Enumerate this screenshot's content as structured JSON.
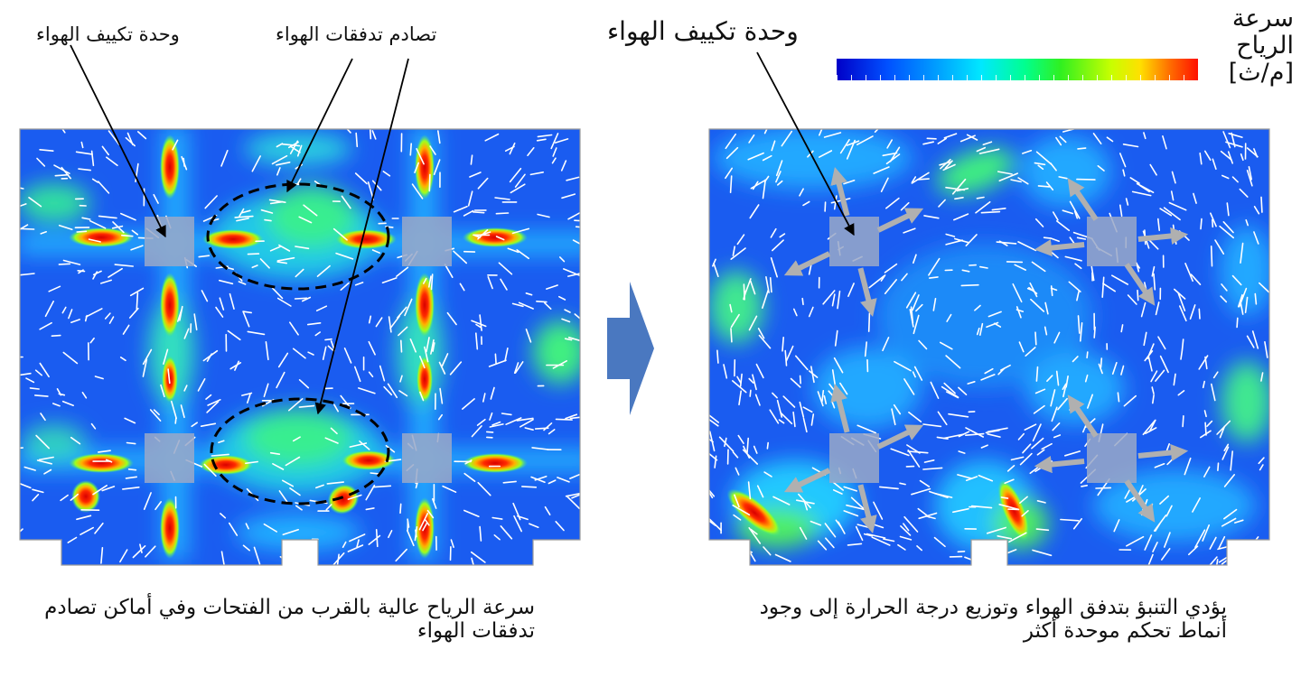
{
  "left_panel": {
    "label_ac_unit": "وحدة تكييف الهواء",
    "label_collision": "تصادم تدفقات الهواء",
    "caption_line1": "سرعة الرياح عالية بالقرب من الفتحات وفي أماكن تصادم",
    "caption_line2": "تدفقات الهواء"
  },
  "right_panel": {
    "label_ac_unit": "وحدة تكييف الهواء",
    "caption_line1": "يؤدي التنبؤ بتدفق الهواء وتوزيع درجة الحرارة إلى وجود",
    "caption_line2": "أنماط تحكم موحدة أكثر"
  },
  "legend": {
    "title_line1": "سرعة",
    "title_line2": "الرياح",
    "title_line3": "[م/ث]"
  },
  "colors": {
    "field_base": "#1a5cf0",
    "field_light": "#1fa8ff",
    "field_green": "#2ee87a",
    "hot_red": "#e81000",
    "ac_unit_fill": "#9aa8c8",
    "big_arrow": "#4a78c0",
    "flow_arrow": "#b0b0b0"
  }
}
